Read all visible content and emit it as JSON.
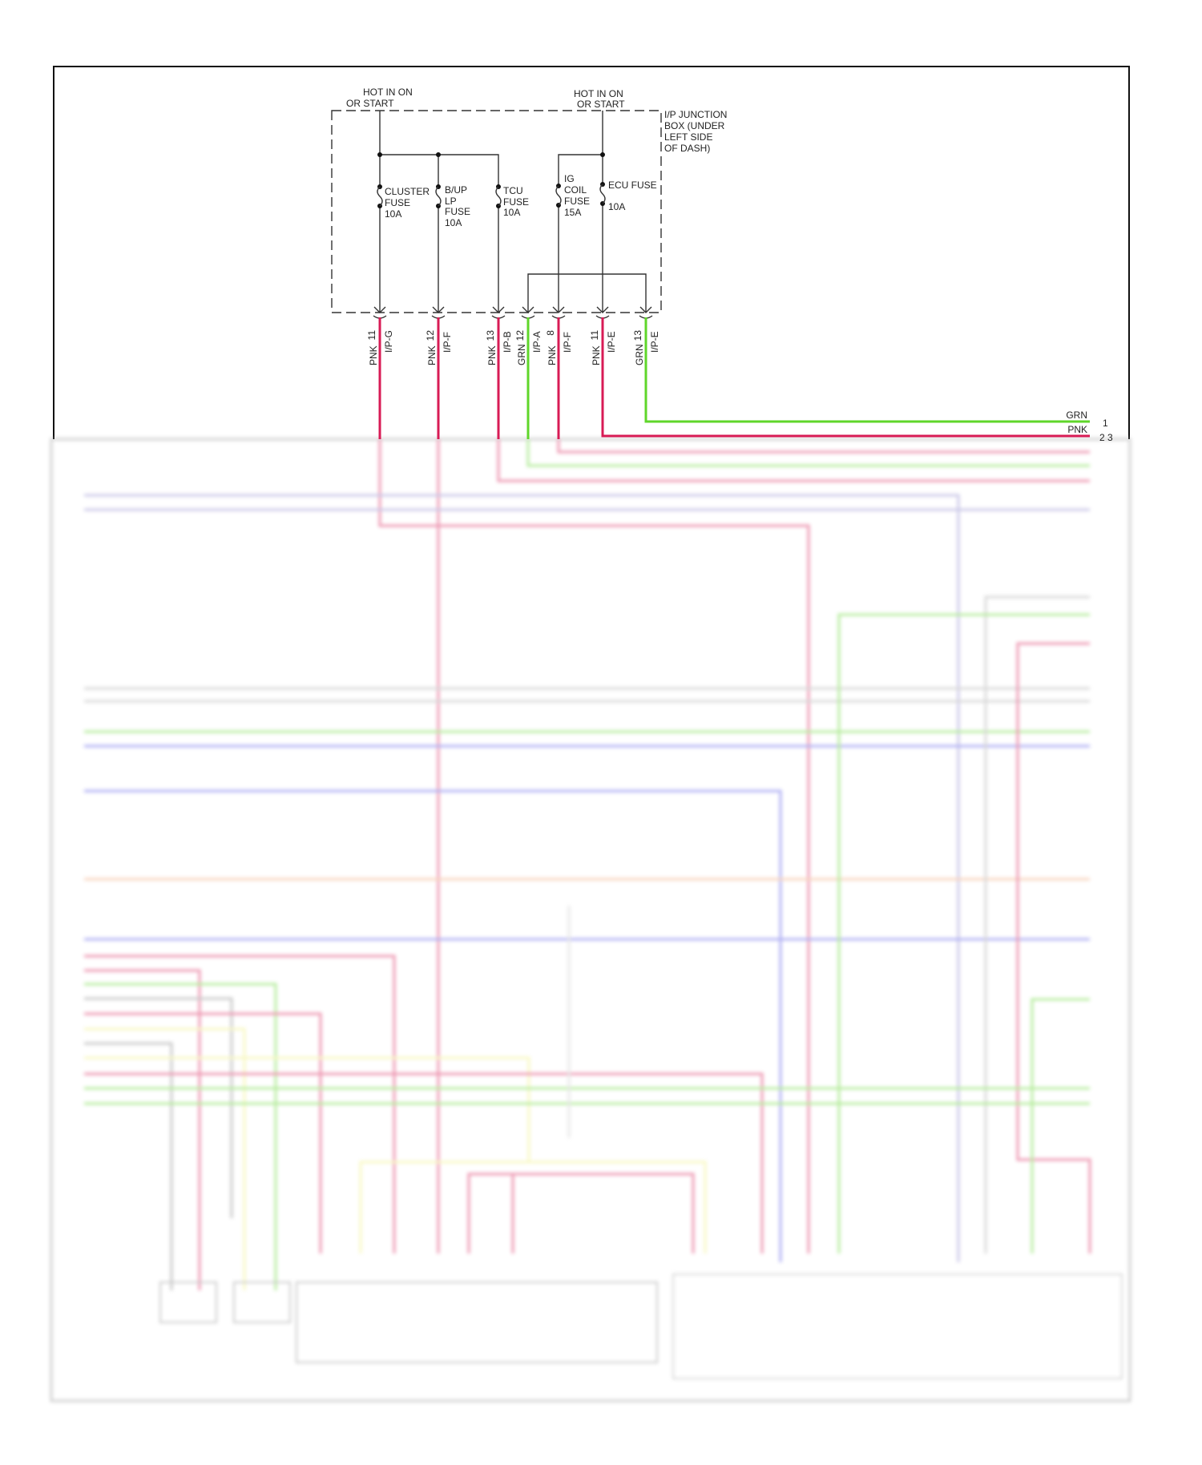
{
  "colors": {
    "pink": "#d81b55",
    "green": "#5fd62a",
    "purple": "#8c85cc",
    "blue": "#5050e6",
    "orange": "#f0a070",
    "yellow": "#f0f07a",
    "gray": "#aaaaaa",
    "frame": "#111111"
  },
  "power_sources": [
    {
      "line1": "HOT IN ON",
      "line2": "OR START"
    },
    {
      "line1": "HOT IN ON",
      "line2": "OR START"
    }
  ],
  "junction_box": {
    "lines": [
      "I/P JUNCTION",
      "BOX (UNDER",
      "LEFT SIDE",
      "OF DASH)"
    ]
  },
  "fuses": [
    {
      "lines": [
        "CLUSTER",
        "FUSE",
        "10A"
      ]
    },
    {
      "lines": [
        "B/UP",
        "LP",
        "FUSE",
        "10A"
      ]
    },
    {
      "lines": [
        "TCU",
        "FUSE",
        "10A"
      ]
    },
    {
      "lines": [
        "IG",
        "COIL",
        "FUSE",
        "15A"
      ]
    },
    {
      "lines": [
        "ECU FUSE",
        "",
        "10A"
      ]
    }
  ],
  "terminals": [
    {
      "pin": "11",
      "connector": "I/P-G",
      "wire": "PNK"
    },
    {
      "pin": "12",
      "connector": "I/P-F",
      "wire": "PNK"
    },
    {
      "pin": "13",
      "connector": "I/P-B",
      "wire": "PNK"
    },
    {
      "pin": "12",
      "connector": "I/P-A",
      "wire": "GRN"
    },
    {
      "pin": "8",
      "connector": "I/P-F",
      "wire": "PNK"
    },
    {
      "pin": "11",
      "connector": "I/P-E",
      "wire": "PNK"
    },
    {
      "pin": "13",
      "connector": "I/P-E",
      "wire": "GRN"
    }
  ],
  "right_connector": [
    {
      "wire": "GRN",
      "pins": "1"
    },
    {
      "wire": "PNK",
      "pins": "2 3"
    }
  ]
}
